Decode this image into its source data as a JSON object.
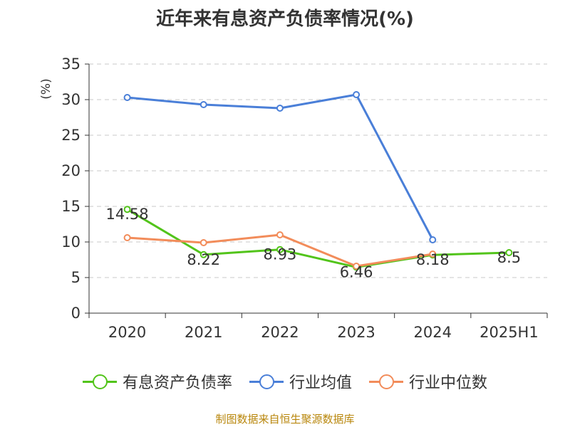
{
  "chart_data": {
    "type": "line",
    "title": "近年来有息资产负债率情况(%)",
    "ylabel": "(%)",
    "categories": [
      "2020",
      "2021",
      "2022",
      "2023",
      "2024",
      "2025H1"
    ],
    "y_ticks": [
      "0",
      "5",
      "10",
      "15",
      "20",
      "25",
      "30",
      "35"
    ],
    "ylim": [
      0,
      35
    ],
    "grid": true,
    "legend_position": "bottom",
    "series": [
      {
        "name": "有息资产负债率",
        "color": "#52c41a",
        "values": [
          14.58,
          8.22,
          8.93,
          6.46,
          8.18,
          8.5
        ],
        "labels": [
          "14.58",
          "8.22",
          "8.93",
          "6.46",
          "8.18",
          "8.5"
        ]
      },
      {
        "name": "行业均值",
        "color": "#4a7fd8",
        "values": [
          30.3,
          29.3,
          28.8,
          30.7,
          10.3,
          null
        ]
      },
      {
        "name": "行业中位数",
        "color": "#f28c5a",
        "values": [
          10.6,
          9.9,
          11.0,
          6.6,
          8.3,
          null
        ]
      }
    ]
  },
  "source": "制图数据来自恒生聚源数据库"
}
